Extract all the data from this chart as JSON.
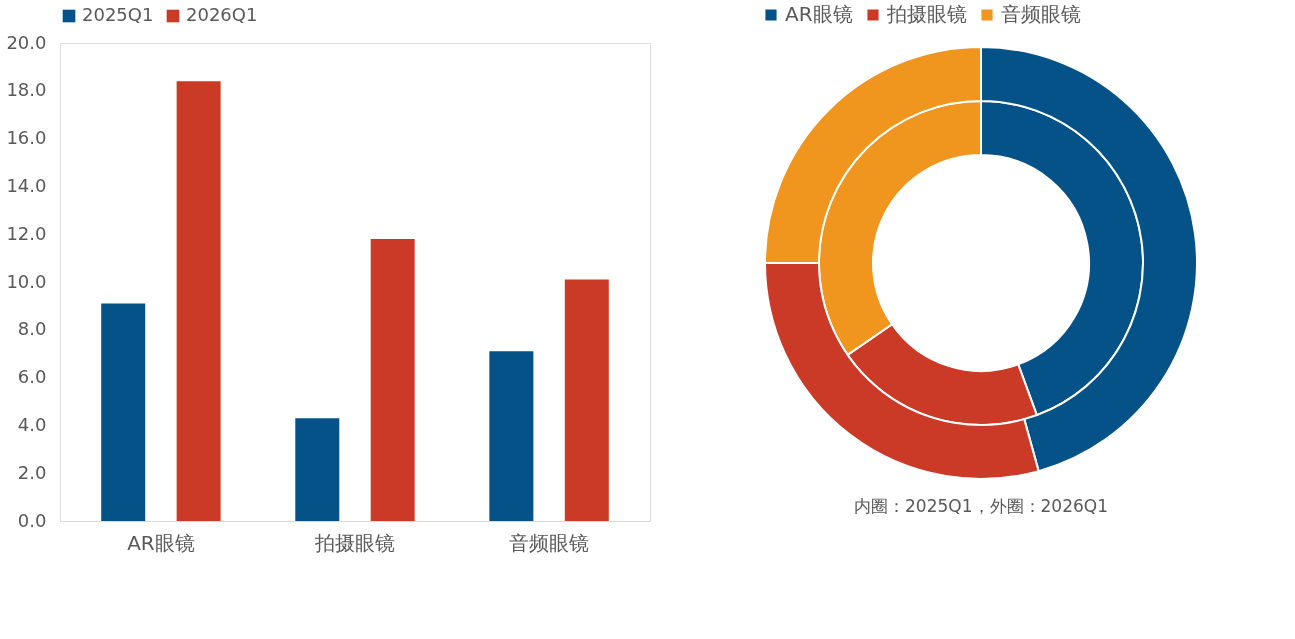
{
  "chart_data": [
    {
      "type": "bar",
      "categories": [
        "AR眼镜",
        "拍摄眼镜",
        "音频眼镜"
      ],
      "series": [
        {
          "name": "2025Q1",
          "color": "#045287",
          "values": [
            9.1,
            4.3,
            7.1
          ]
        },
        {
          "name": "2026Q1",
          "color": "#cb3a27",
          "values": [
            18.4,
            11.8,
            10.1
          ]
        }
      ],
      "ylim": [
        0,
        20
      ],
      "yticks": [
        {
          "value": 0,
          "label": "0.0"
        },
        {
          "value": 2,
          "label": "2.0"
        },
        {
          "value": 4,
          "label": "4.0"
        },
        {
          "value": 6,
          "label": "6.0"
        },
        {
          "value": 8,
          "label": "8.0"
        },
        {
          "value": 10,
          "label": "10.0"
        },
        {
          "value": 12,
          "label": "12.0"
        },
        {
          "value": 14,
          "label": "14.0"
        },
        {
          "value": 16,
          "label": "16.0"
        },
        {
          "value": 18,
          "label": "18.0"
        },
        {
          "value": 20,
          "label": "20.0"
        }
      ],
      "grid": false,
      "legend": "top"
    },
    {
      "type": "donut",
      "categories": [
        "AR眼镜",
        "拍摄眼镜",
        "音频眼镜"
      ],
      "colors": [
        "#045287",
        "#cb3a27",
        "#f0951e"
      ],
      "series": [
        {
          "values": [
            44.4,
            21.0,
            34.6
          ]
        },
        {
          "values": [
            45.7,
            29.3,
            25.0
          ]
        }
      ],
      "legend": "top",
      "annotations": [
        "内圈：2025Q1，外圈：2026Q1"
      ]
    }
  ]
}
